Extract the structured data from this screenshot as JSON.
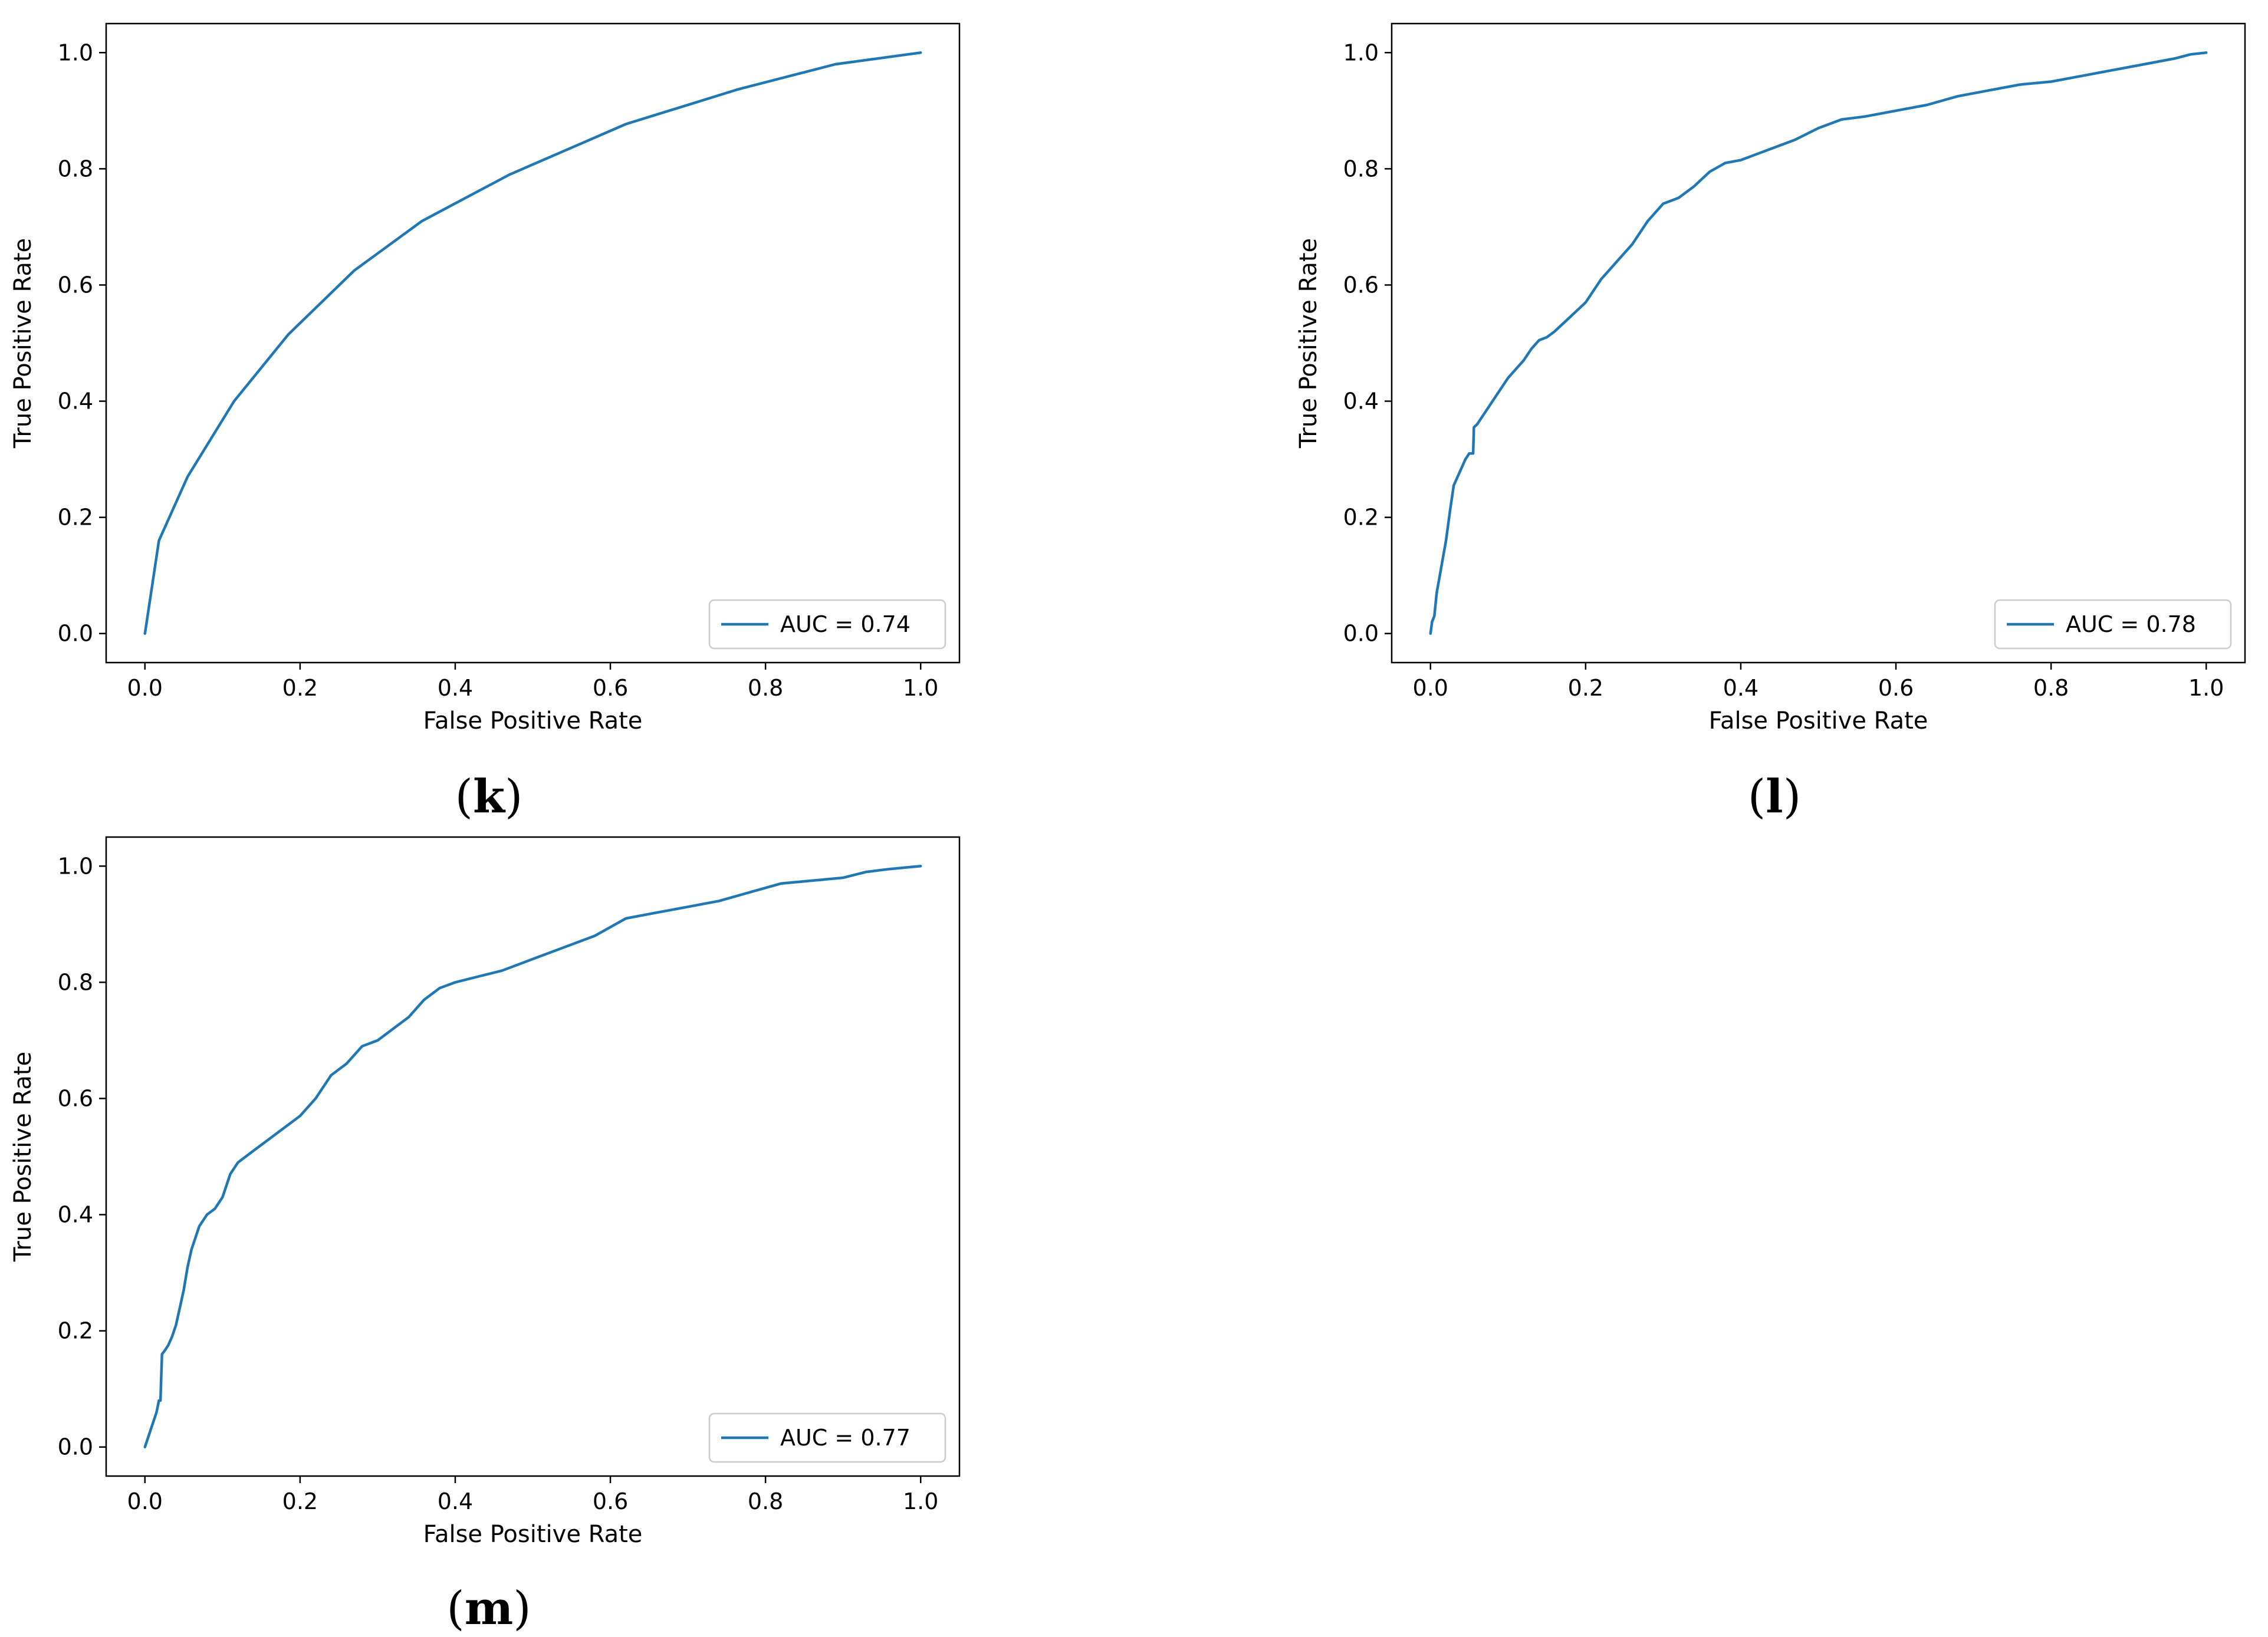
{
  "style": {
    "line_color": "#1f77b4"
  },
  "chart_data": [
    {
      "type": "line",
      "panel": "k",
      "xlabel": "False Positive Rate",
      "ylabel": "True Positive Rate",
      "xlim": [
        -0.05,
        1.05
      ],
      "ylim": [
        -0.05,
        1.05
      ],
      "xticks": [
        "0.0",
        "0.2",
        "0.4",
        "0.6",
        "0.8",
        "1.0"
      ],
      "yticks": [
        "0.0",
        "0.2",
        "0.4",
        "0.6",
        "0.8",
        "1.0"
      ],
      "legend_location": "lower right",
      "series": [
        {
          "name": "AUC = 0.74",
          "x": [
            0.0,
            0.018,
            0.055,
            0.115,
            0.185,
            0.27,
            0.357,
            0.47,
            0.62,
            0.765,
            0.89,
            1.0
          ],
          "y": [
            0.0,
            0.16,
            0.27,
            0.4,
            0.515,
            0.625,
            0.71,
            0.79,
            0.877,
            0.937,
            0.98,
            1.0
          ]
        }
      ]
    },
    {
      "type": "line",
      "panel": "l",
      "xlabel": "False Positive Rate",
      "ylabel": "True Positive Rate",
      "xlim": [
        -0.05,
        1.05
      ],
      "ylim": [
        -0.05,
        1.05
      ],
      "xticks": [
        "0.0",
        "0.2",
        "0.4",
        "0.6",
        "0.8",
        "1.0"
      ],
      "yticks": [
        "0.0",
        "0.2",
        "0.4",
        "0.6",
        "0.8",
        "1.0"
      ],
      "legend_location": "lower right",
      "series": [
        {
          "name": "AUC = 0.78",
          "x": [
            0.0,
            0.002,
            0.005,
            0.008,
            0.012,
            0.016,
            0.02,
            0.025,
            0.03,
            0.035,
            0.04,
            0.045,
            0.05,
            0.055,
            0.056,
            0.06,
            0.07,
            0.08,
            0.09,
            0.1,
            0.11,
            0.12,
            0.13,
            0.14,
            0.15,
            0.16,
            0.18,
            0.2,
            0.22,
            0.24,
            0.26,
            0.28,
            0.3,
            0.32,
            0.34,
            0.36,
            0.38,
            0.4,
            0.42,
            0.44,
            0.47,
            0.5,
            0.53,
            0.56,
            0.6,
            0.64,
            0.68,
            0.72,
            0.76,
            0.8,
            0.84,
            0.88,
            0.92,
            0.96,
            0.98,
            1.0
          ],
          "y": [
            0.0,
            0.02,
            0.03,
            0.07,
            0.1,
            0.13,
            0.16,
            0.21,
            0.255,
            0.27,
            0.285,
            0.3,
            0.31,
            0.31,
            0.355,
            0.36,
            0.38,
            0.4,
            0.42,
            0.44,
            0.455,
            0.47,
            0.49,
            0.505,
            0.51,
            0.52,
            0.545,
            0.57,
            0.61,
            0.64,
            0.67,
            0.71,
            0.74,
            0.75,
            0.77,
            0.795,
            0.81,
            0.815,
            0.825,
            0.835,
            0.85,
            0.87,
            0.885,
            0.89,
            0.9,
            0.91,
            0.925,
            0.935,
            0.945,
            0.95,
            0.96,
            0.97,
            0.98,
            0.99,
            0.997,
            1.0
          ]
        }
      ]
    },
    {
      "type": "line",
      "panel": "m",
      "xlabel": "False Positive Rate",
      "ylabel": "True Positive Rate",
      "xlim": [
        -0.05,
        1.05
      ],
      "ylim": [
        -0.05,
        1.05
      ],
      "xticks": [
        "0.0",
        "0.2",
        "0.4",
        "0.6",
        "0.8",
        "1.0"
      ],
      "yticks": [
        "0.0",
        "0.2",
        "0.4",
        "0.6",
        "0.8",
        "1.0"
      ],
      "legend_location": "lower right",
      "series": [
        {
          "name": "AUC = 0.77",
          "x": [
            0.0,
            0.005,
            0.01,
            0.015,
            0.018,
            0.02,
            0.022,
            0.025,
            0.03,
            0.035,
            0.04,
            0.045,
            0.05,
            0.055,
            0.06,
            0.07,
            0.08,
            0.09,
            0.1,
            0.11,
            0.12,
            0.14,
            0.16,
            0.18,
            0.2,
            0.22,
            0.24,
            0.26,
            0.28,
            0.3,
            0.32,
            0.34,
            0.36,
            0.38,
            0.4,
            0.43,
            0.46,
            0.5,
            0.54,
            0.58,
            0.62,
            0.66,
            0.7,
            0.74,
            0.78,
            0.82,
            0.86,
            0.9,
            0.93,
            0.96,
            1.0
          ],
          "y": [
            0.0,
            0.02,
            0.04,
            0.06,
            0.08,
            0.08,
            0.16,
            0.165,
            0.175,
            0.19,
            0.21,
            0.24,
            0.27,
            0.31,
            0.34,
            0.38,
            0.4,
            0.41,
            0.43,
            0.47,
            0.49,
            0.51,
            0.53,
            0.55,
            0.57,
            0.6,
            0.64,
            0.66,
            0.69,
            0.7,
            0.72,
            0.74,
            0.77,
            0.79,
            0.8,
            0.81,
            0.82,
            0.84,
            0.86,
            0.88,
            0.91,
            0.92,
            0.93,
            0.94,
            0.955,
            0.97,
            0.975,
            0.98,
            0.99,
            0.995,
            1.0
          ]
        }
      ]
    }
  ]
}
